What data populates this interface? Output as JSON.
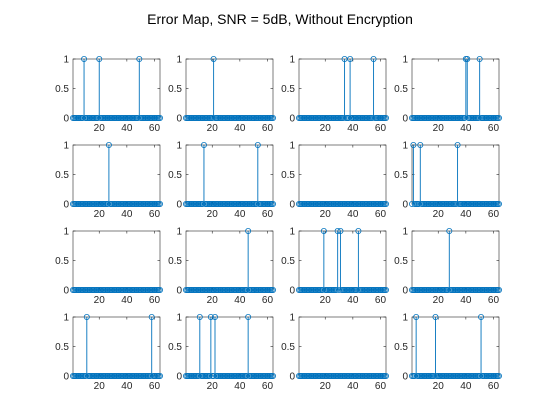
{
  "figure": {
    "title": "Error Map, SNR = 5dB, Without Encryption"
  },
  "colors": {
    "stem": "#0072BD",
    "axes": "#262626",
    "background": "#ffffff"
  },
  "chart_data": {
    "type": "stem-grid",
    "rows": 4,
    "cols": 4,
    "xlim": [
      1,
      64
    ],
    "ylim": [
      0,
      1
    ],
    "xticks": [
      20,
      40,
      60
    ],
    "yticks": [
      0,
      0.5,
      1
    ],
    "xtick_labels": [
      "20",
      "40",
      "60"
    ],
    "ytick_labels": [
      "0",
      "0.5",
      "1"
    ],
    "grid": false,
    "n_points": 64,
    "subplots": [
      {
        "ones": [
          9,
          20,
          49
        ]
      },
      {
        "ones": [
          21
        ]
      },
      {
        "ones": [
          34,
          38,
          55
        ]
      },
      {
        "ones": [
          40,
          41,
          50
        ]
      },
      {
        "ones": [
          27
        ]
      },
      {
        "ones": [
          14,
          53
        ]
      },
      {
        "ones": []
      },
      {
        "ones": [
          2,
          7,
          34
        ]
      },
      {
        "ones": []
      },
      {
        "ones": [
          46
        ]
      },
      {
        "ones": [
          19,
          29,
          31,
          44
        ]
      },
      {
        "ones": [
          28
        ]
      },
      {
        "ones": [
          11,
          58
        ]
      },
      {
        "ones": [
          11,
          19,
          22,
          46
        ]
      },
      {
        "ones": []
      },
      {
        "ones": [
          4,
          18,
          51
        ]
      }
    ]
  }
}
